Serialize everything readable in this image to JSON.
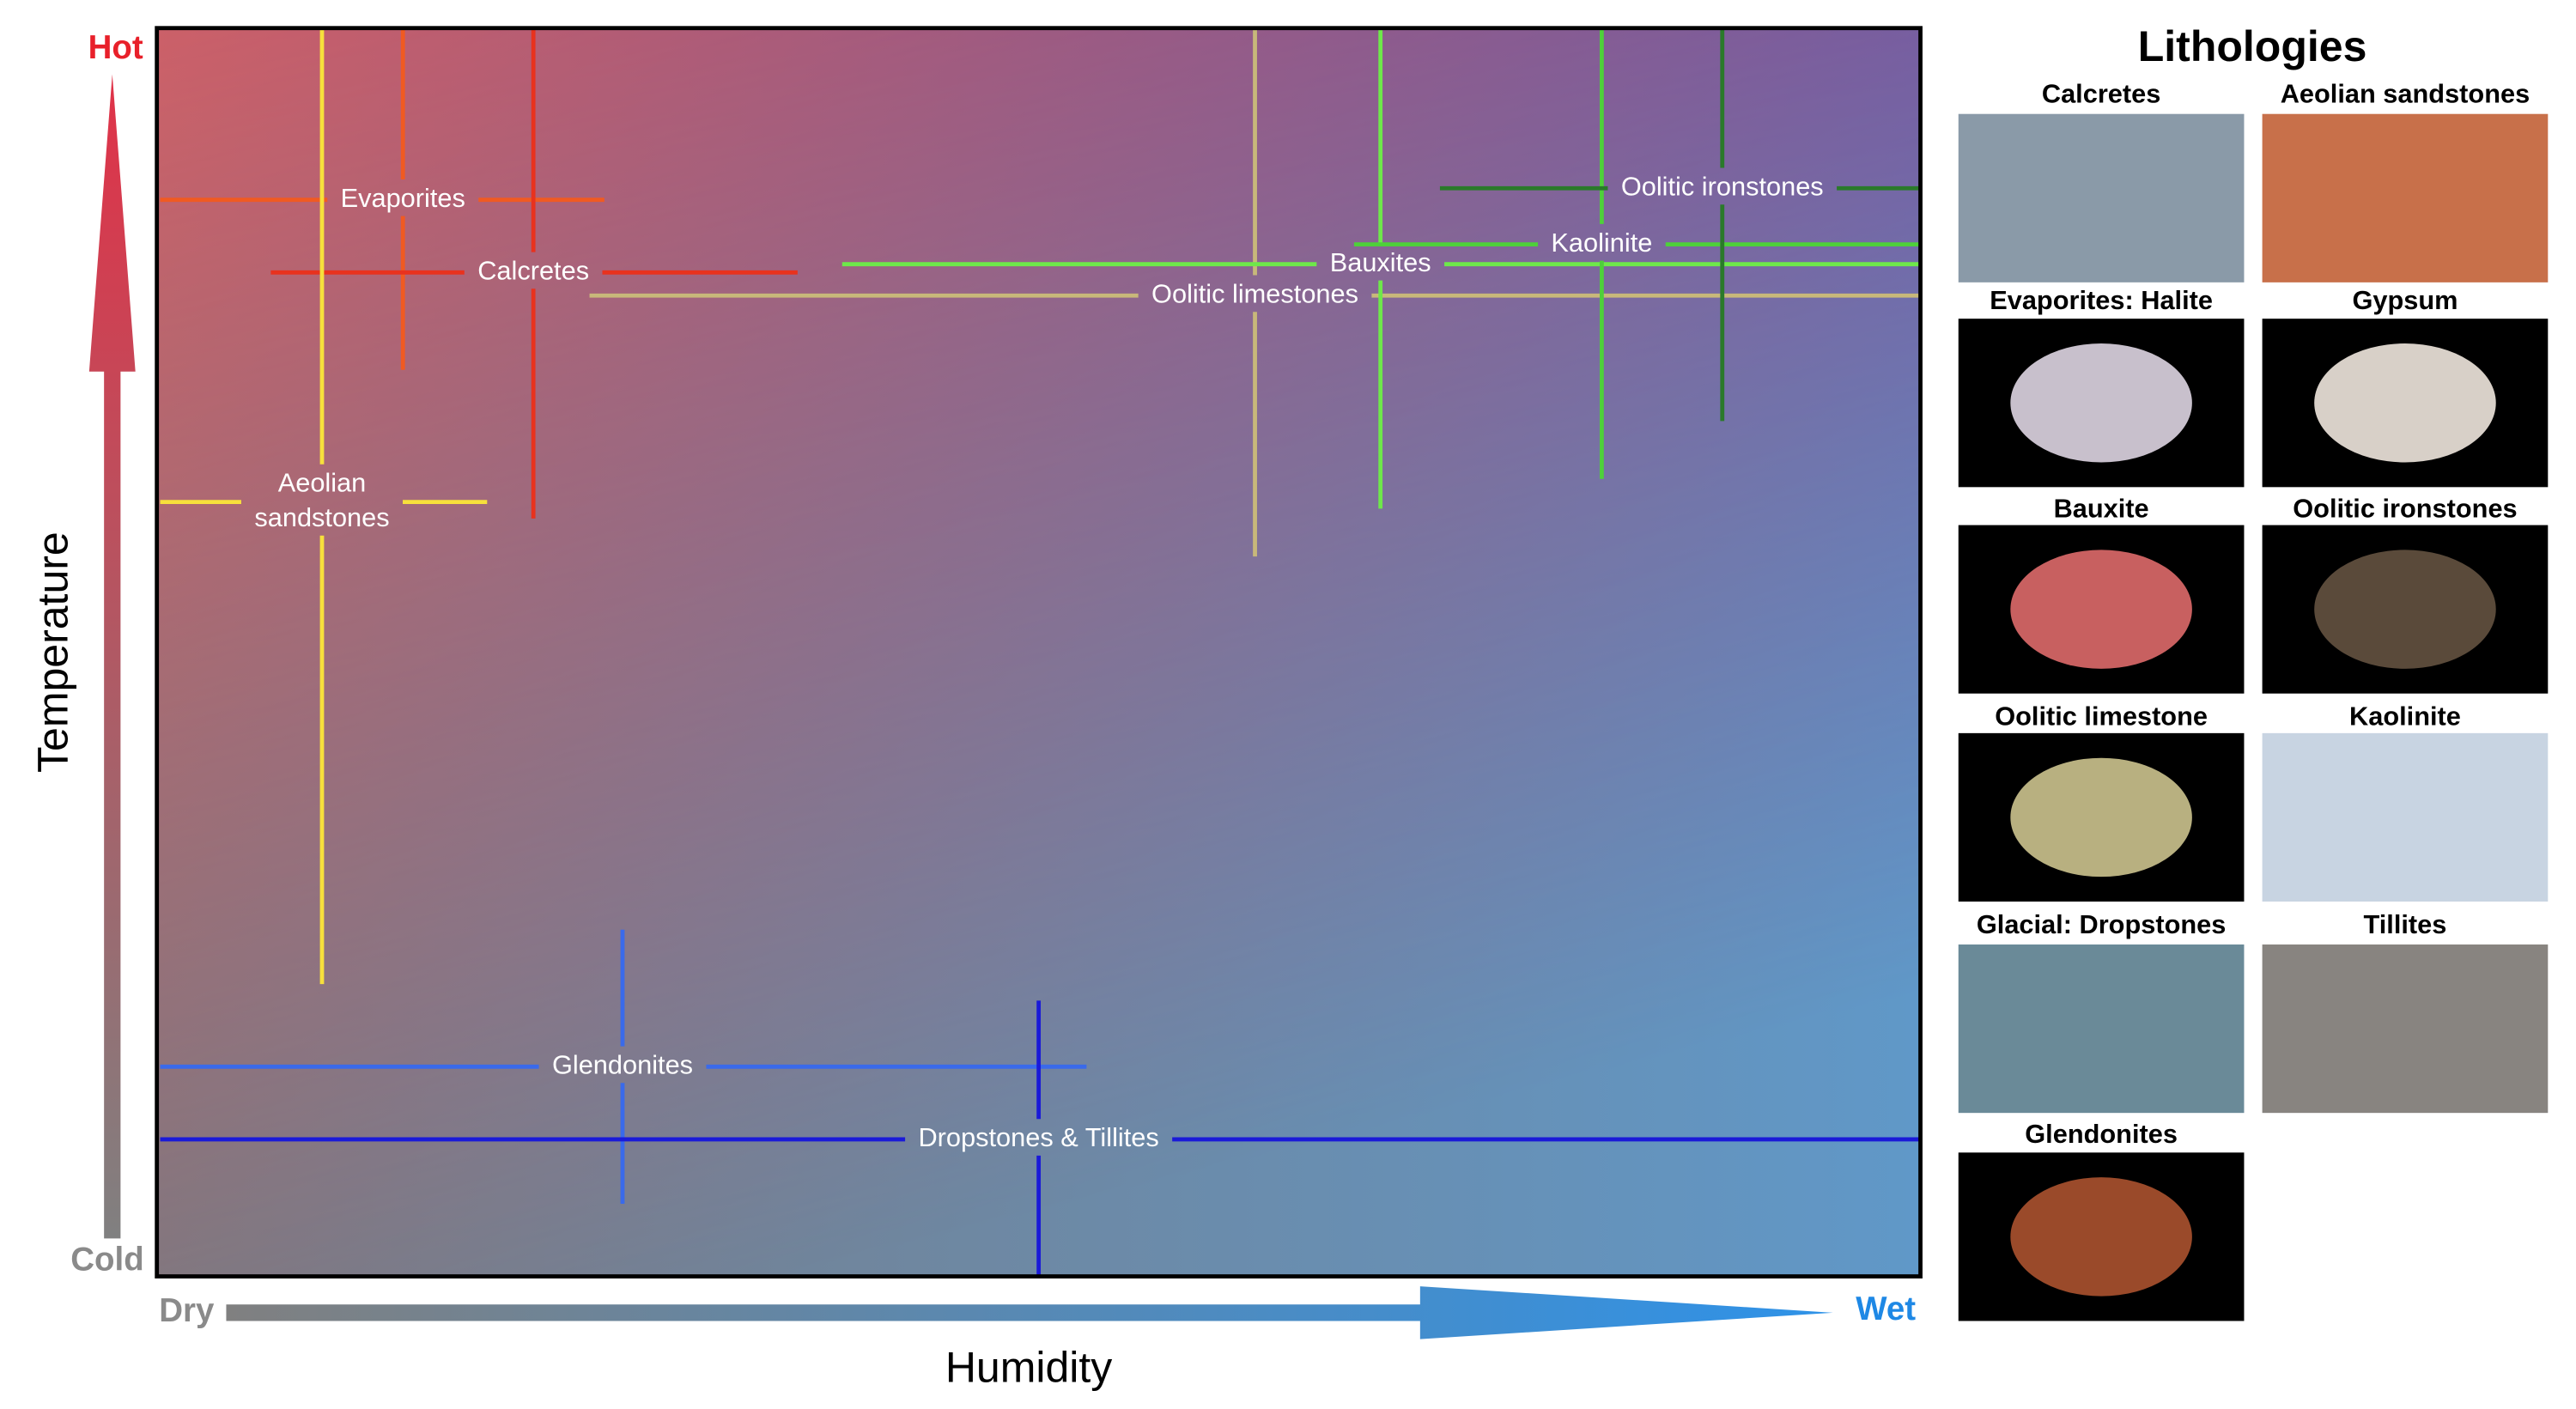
{
  "axes": {
    "y_label": "Temperature",
    "y_top": "Hot",
    "y_bottom": "Cold",
    "x_label": "Humidity",
    "x_left": "Dry",
    "x_right": "Wet"
  },
  "ranges": [
    {
      "lines": [
        "Evaporites"
      ],
      "color": "#f05a22"
    },
    {
      "lines": [
        "Calcretes"
      ],
      "color": "#e8321e"
    },
    {
      "lines": [
        "Aeolian",
        "sandstones"
      ],
      "color": "#f7e03c"
    },
    {
      "lines": [
        "Oolitic limestones"
      ],
      "color": "#c8b87a"
    },
    {
      "lines": [
        "Bauxites"
      ],
      "color": "#6ee84a"
    },
    {
      "lines": [
        "Kaolinite"
      ],
      "color": "#4ed03a"
    },
    {
      "lines": [
        "Oolitic ironstones"
      ],
      "color": "#2a7a2a"
    },
    {
      "lines": [
        "Glendonites"
      ],
      "color": "#3a6aea"
    },
    {
      "lines": [
        "Dropstones & Tillites"
      ],
      "color": "#1a1ad8"
    }
  ],
  "lithologies": {
    "title": "Lithologies",
    "items": [
      "Calcretes",
      "Aeolian sandstones",
      "Evaporites: Halite",
      "Gypsum",
      "Bauxite",
      "Oolitic ironstones",
      "Oolitic limestone",
      "Kaolinite",
      "Glacial: Dropstones",
      "Tillites",
      "Glendonites"
    ]
  }
}
